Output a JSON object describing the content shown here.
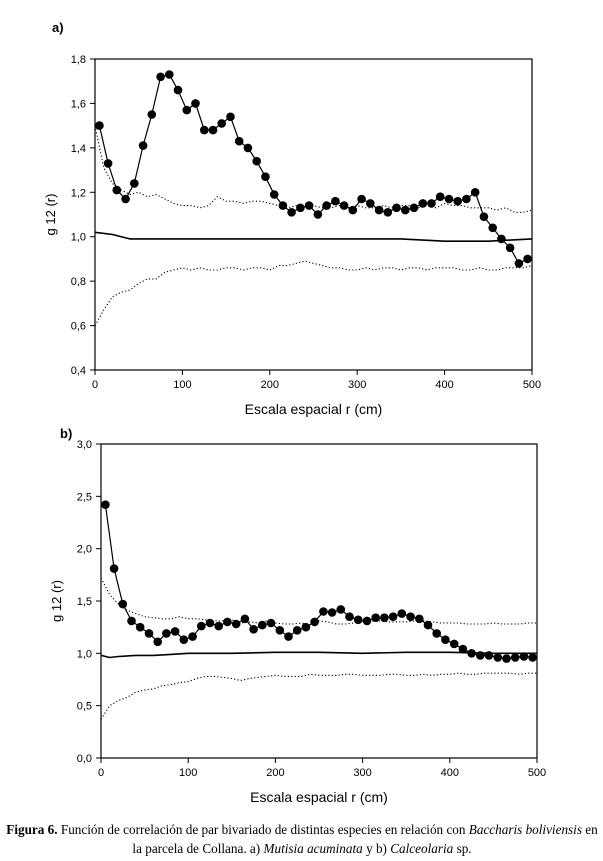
{
  "figure": {
    "caption": {
      "label": "Figura 6.",
      "text_1": " Función de correlación de par bivariado de distintas especies en relación con ",
      "species_ref": "Baccharis boliviensis",
      "text_2": " en la parcela de Collana. a) ",
      "species_a": "Mutisia acuminata",
      "text_3": " y b) ",
      "species_b": "Calceolaria",
      "text_4": " sp."
    }
  },
  "chart_data": [
    {
      "type": "line",
      "panel_label": "a)",
      "xlabel": "Escala espacial r (cm)",
      "ylabel": "g 12 (r)",
      "xlim": [
        0,
        500
      ],
      "ylim": [
        0.4,
        1.8
      ],
      "x_ticks": [
        0,
        100,
        200,
        300,
        400,
        500
      ],
      "x_tick_labels": [
        "0",
        "100",
        "200",
        "300",
        "400",
        "500"
      ],
      "y_ticks": [
        0.4,
        0.6,
        0.8,
        1.0,
        1.2,
        1.4,
        1.6,
        1.8
      ],
      "y_tick_labels": [
        "0,4",
        "0,6",
        "0,8",
        "1,0",
        "1,2",
        "1,4",
        "1,6",
        "1,8"
      ],
      "grid": false,
      "series": [
        {
          "role": "observed",
          "style": "solid-dots",
          "x": [
            5,
            15,
            25,
            35,
            45,
            55,
            65,
            75,
            85,
            95,
            105,
            115,
            125,
            135,
            145,
            155,
            165,
            175,
            185,
            195,
            205,
            215,
            225,
            235,
            245,
            255,
            265,
            275,
            285,
            295,
            305,
            315,
            325,
            335,
            345,
            355,
            365,
            375,
            385,
            395,
            405,
            415,
            425,
            435,
            445,
            455,
            465,
            475,
            485,
            495
          ],
          "y": [
            1.5,
            1.33,
            1.21,
            1.17,
            1.24,
            1.41,
            1.55,
            1.72,
            1.73,
            1.66,
            1.57,
            1.6,
            1.48,
            1.48,
            1.51,
            1.54,
            1.43,
            1.4,
            1.34,
            1.27,
            1.19,
            1.14,
            1.11,
            1.13,
            1.14,
            1.1,
            1.14,
            1.16,
            1.14,
            1.12,
            1.17,
            1.15,
            1.12,
            1.11,
            1.13,
            1.12,
            1.13,
            1.15,
            1.15,
            1.18,
            1.17,
            1.16,
            1.17,
            1.2,
            1.09,
            1.04,
            0.99,
            0.95,
            0.88,
            0.9
          ]
        },
        {
          "role": "upper-envelope",
          "style": "dotted",
          "x": [
            0,
            10,
            20,
            30,
            40,
            50,
            60,
            70,
            80,
            90,
            100,
            110,
            120,
            130,
            140,
            150,
            160,
            170,
            180,
            190,
            200,
            210,
            220,
            230,
            240,
            250,
            260,
            270,
            280,
            290,
            300,
            310,
            320,
            330,
            340,
            350,
            360,
            370,
            380,
            390,
            400,
            410,
            420,
            430,
            440,
            450,
            460,
            470,
            480,
            490,
            500
          ],
          "y": [
            1.5,
            1.31,
            1.24,
            1.21,
            1.19,
            1.2,
            1.18,
            1.19,
            1.17,
            1.15,
            1.14,
            1.14,
            1.13,
            1.14,
            1.18,
            1.16,
            1.16,
            1.15,
            1.16,
            1.16,
            1.15,
            1.14,
            1.13,
            1.14,
            1.13,
            1.14,
            1.13,
            1.13,
            1.14,
            1.13,
            1.14,
            1.13,
            1.13,
            1.14,
            1.13,
            1.14,
            1.14,
            1.13,
            1.14,
            1.13,
            1.15,
            1.14,
            1.14,
            1.13,
            1.13,
            1.13,
            1.12,
            1.13,
            1.11,
            1.11,
            1.12
          ]
        },
        {
          "role": "expected",
          "style": "solid",
          "x": [
            0,
            20,
            40,
            60,
            80,
            100,
            150,
            200,
            250,
            300,
            350,
            400,
            450,
            500
          ],
          "y": [
            1.02,
            1.01,
            0.99,
            0.99,
            0.99,
            0.99,
            0.99,
            0.99,
            0.99,
            0.99,
            0.99,
            0.98,
            0.98,
            0.99
          ]
        },
        {
          "role": "lower-envelope",
          "style": "dotted",
          "x": [
            0,
            10,
            20,
            30,
            40,
            50,
            60,
            70,
            80,
            90,
            100,
            110,
            120,
            130,
            140,
            150,
            160,
            170,
            180,
            190,
            200,
            210,
            220,
            230,
            240,
            250,
            260,
            270,
            280,
            290,
            300,
            310,
            320,
            330,
            340,
            350,
            360,
            370,
            380,
            390,
            400,
            410,
            420,
            430,
            440,
            450,
            460,
            470,
            480,
            490,
            500
          ],
          "y": [
            0.6,
            0.67,
            0.73,
            0.75,
            0.76,
            0.79,
            0.81,
            0.81,
            0.84,
            0.85,
            0.86,
            0.85,
            0.86,
            0.85,
            0.85,
            0.86,
            0.86,
            0.85,
            0.86,
            0.86,
            0.85,
            0.87,
            0.87,
            0.88,
            0.89,
            0.88,
            0.87,
            0.86,
            0.86,
            0.85,
            0.85,
            0.86,
            0.85,
            0.86,
            0.86,
            0.85,
            0.86,
            0.86,
            0.85,
            0.86,
            0.86,
            0.86,
            0.85,
            0.85,
            0.86,
            0.85,
            0.85,
            0.86,
            0.86,
            0.86,
            0.87
          ]
        }
      ]
    },
    {
      "type": "line",
      "panel_label": "b)",
      "xlabel": "Escala espacial r (cm)",
      "ylabel": "g 12 (r)",
      "xlim": [
        0,
        500
      ],
      "ylim": [
        0.0,
        3.0
      ],
      "x_ticks": [
        0,
        100,
        200,
        300,
        400,
        500
      ],
      "x_tick_labels": [
        "0",
        "100",
        "200",
        "300",
        "400",
        "500"
      ],
      "y_ticks": [
        0.0,
        0.5,
        1.0,
        1.5,
        2.0,
        2.5,
        3.0
      ],
      "y_tick_labels": [
        "0,0",
        "0,5",
        "1,0",
        "1,5",
        "2,0",
        "2,5",
        "3,0"
      ],
      "grid": false,
      "series": [
        {
          "role": "observed",
          "style": "solid-dots",
          "x": [
            5,
            15,
            25,
            35,
            45,
            55,
            65,
            75,
            85,
            95,
            105,
            115,
            125,
            135,
            145,
            155,
            165,
            175,
            185,
            195,
            205,
            215,
            225,
            235,
            245,
            255,
            265,
            275,
            285,
            295,
            305,
            315,
            325,
            335,
            345,
            355,
            365,
            375,
            385,
            395,
            405,
            415,
            425,
            435,
            445,
            455,
            465,
            475,
            485,
            495
          ],
          "y": [
            2.42,
            1.81,
            1.47,
            1.31,
            1.25,
            1.19,
            1.11,
            1.19,
            1.21,
            1.13,
            1.16,
            1.26,
            1.29,
            1.26,
            1.3,
            1.28,
            1.33,
            1.23,
            1.27,
            1.29,
            1.22,
            1.16,
            1.22,
            1.25,
            1.3,
            1.4,
            1.39,
            1.42,
            1.35,
            1.32,
            1.31,
            1.34,
            1.34,
            1.35,
            1.38,
            1.35,
            1.33,
            1.27,
            1.19,
            1.13,
            1.09,
            1.04,
            1.0,
            0.98,
            0.98,
            0.96,
            0.95,
            0.96,
            0.97,
            0.96
          ]
        },
        {
          "role": "upper-envelope",
          "style": "dotted",
          "x": [
            0,
            10,
            20,
            30,
            40,
            50,
            60,
            70,
            80,
            90,
            100,
            110,
            120,
            130,
            140,
            150,
            160,
            170,
            180,
            190,
            200,
            210,
            220,
            230,
            240,
            250,
            260,
            270,
            280,
            290,
            300,
            310,
            320,
            330,
            340,
            350,
            360,
            370,
            380,
            390,
            400,
            410,
            420,
            430,
            440,
            450,
            460,
            470,
            480,
            490,
            500
          ],
          "y": [
            1.72,
            1.56,
            1.47,
            1.41,
            1.38,
            1.35,
            1.34,
            1.33,
            1.33,
            1.35,
            1.33,
            1.33,
            1.32,
            1.31,
            1.31,
            1.32,
            1.29,
            1.3,
            1.29,
            1.31,
            1.29,
            1.28,
            1.28,
            1.29,
            1.27,
            1.31,
            1.3,
            1.28,
            1.28,
            1.29,
            1.31,
            1.31,
            1.31,
            1.3,
            1.3,
            1.3,
            1.31,
            1.31,
            1.3,
            1.29,
            1.29,
            1.29,
            1.28,
            1.28,
            1.28,
            1.29,
            1.28,
            1.28,
            1.28,
            1.29,
            1.29
          ]
        },
        {
          "role": "expected",
          "style": "solid",
          "x": [
            0,
            10,
            20,
            40,
            60,
            80,
            100,
            150,
            200,
            250,
            300,
            350,
            400,
            450,
            500
          ],
          "y": [
            0.98,
            0.96,
            0.97,
            0.98,
            0.98,
            0.99,
            1.0,
            1.0,
            1.01,
            1.01,
            1.0,
            1.01,
            1.01,
            1.0,
            1.0
          ]
        },
        {
          "role": "lower-envelope",
          "style": "dotted",
          "x": [
            0,
            10,
            20,
            30,
            40,
            50,
            60,
            70,
            80,
            90,
            100,
            110,
            120,
            130,
            140,
            150,
            160,
            170,
            180,
            190,
            200,
            210,
            220,
            230,
            240,
            250,
            260,
            270,
            280,
            290,
            300,
            310,
            320,
            330,
            340,
            350,
            360,
            370,
            380,
            390,
            400,
            410,
            420,
            430,
            440,
            450,
            460,
            470,
            480,
            490,
            500
          ],
          "y": [
            0.37,
            0.5,
            0.55,
            0.58,
            0.63,
            0.65,
            0.66,
            0.69,
            0.7,
            0.72,
            0.73,
            0.76,
            0.78,
            0.78,
            0.77,
            0.76,
            0.74,
            0.76,
            0.77,
            0.78,
            0.79,
            0.78,
            0.78,
            0.78,
            0.8,
            0.79,
            0.79,
            0.79,
            0.8,
            0.8,
            0.79,
            0.79,
            0.79,
            0.8,
            0.8,
            0.79,
            0.79,
            0.8,
            0.79,
            0.8,
            0.8,
            0.81,
            0.8,
            0.8,
            0.81,
            0.81,
            0.81,
            0.81,
            0.8,
            0.81,
            0.81
          ]
        }
      ]
    }
  ]
}
